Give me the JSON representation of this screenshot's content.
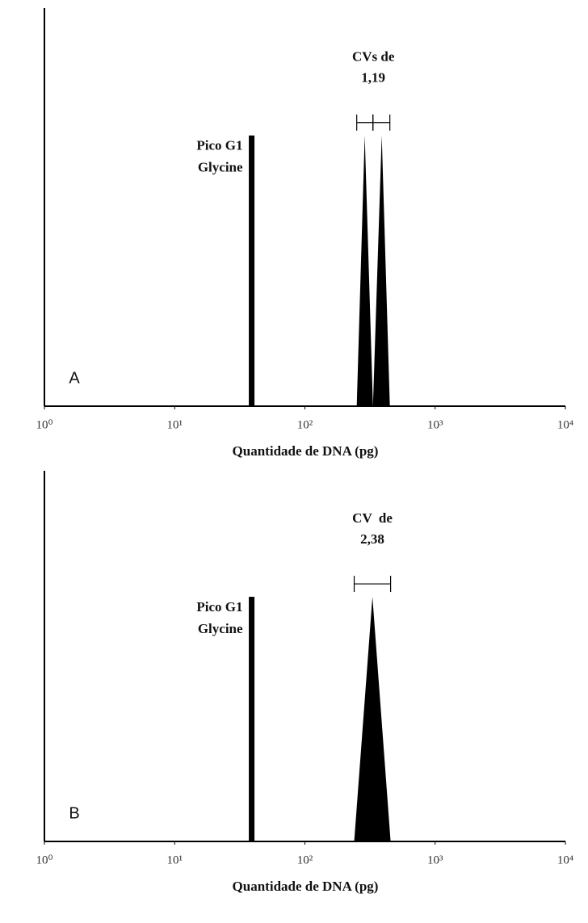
{
  "chart_data": [
    {
      "type": "peak",
      "panel": "A",
      "xlabel": "Quantidade de DNA (pg)",
      "xscale": "log",
      "xlim": [
        1,
        10000
      ],
      "xticks": [
        {
          "value": 1,
          "label": "10⁰"
        },
        {
          "value": 10,
          "label": "10¹"
        },
        {
          "value": 100,
          "label": "10²"
        },
        {
          "value": 1000,
          "label": "10³"
        },
        {
          "value": 10000,
          "label": "10⁴"
        }
      ],
      "ylim": [
        0,
        100
      ],
      "color": "#000000",
      "g1": {
        "x": 39,
        "height": 68,
        "label": [
          "Pico G1",
          "Glycine"
        ]
      },
      "peaks": {
        "x": [
          288,
          389
        ],
        "height": [
          68,
          68
        ],
        "bases": [
          [
            250,
            333
          ],
          [
            333,
            449
          ]
        ]
      },
      "cv_label": [
        "CVs de",
        "1,19"
      ]
    },
    {
      "type": "peak",
      "panel": "B",
      "xlabel": "Quantidade de DNA (pg)",
      "xscale": "log",
      "xlim": [
        1,
        10000
      ],
      "xticks": [
        {
          "value": 1,
          "label": "10⁰"
        },
        {
          "value": 10,
          "label": "10¹"
        },
        {
          "value": 100,
          "label": "10²"
        },
        {
          "value": 1000,
          "label": "10³"
        },
        {
          "value": 10000,
          "label": "10⁴"
        }
      ],
      "ylim": [
        0,
        100
      ],
      "color": "#000000",
      "g1": {
        "x": 39,
        "height": 66,
        "label": [
          "Pico G1",
          "Glycine"
        ]
      },
      "peaks": {
        "x": [
          330
        ],
        "height": [
          66
        ],
        "bases": [
          [
            239,
            455
          ]
        ]
      },
      "cv_label": [
        "CV  de",
        "2,38"
      ]
    }
  ]
}
